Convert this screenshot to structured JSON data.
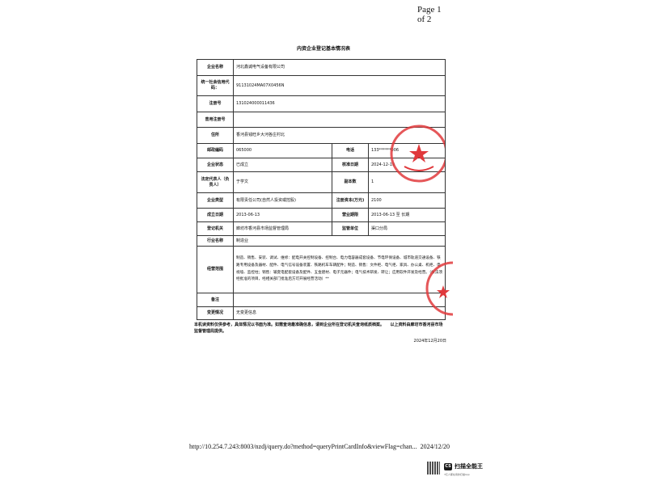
{
  "page_indicator": "Page 1 of 2",
  "title": "内资企业登记基本情况表",
  "rows": {
    "name": {
      "label": "企业名称",
      "value": "河北鑫诚电气设备有限公司"
    },
    "credit_code": {
      "label": "统一社会信用代码：",
      "value": "91131024MA07X0456N"
    },
    "reg_no": {
      "label": "注册号",
      "value": "131024000011436"
    },
    "former_reg_no": {
      "label": "曾用注册号",
      "value": ""
    },
    "address": {
      "label": "住所",
      "value": "香河县钱旺乡大河各庄村北"
    },
    "postcode": {
      "label": "邮政编码",
      "value": "065000"
    },
    "phone": {
      "label": "电话",
      "value": "133******006"
    },
    "status": {
      "label": "企业状态",
      "value": "已成立"
    },
    "approval_date": {
      "label": "核准日期",
      "value": "2024-12-19"
    },
    "legal_rep": {
      "label": "法定代表人（负责人）",
      "value": "于学文"
    },
    "copies": {
      "label": "副本数",
      "value": "1"
    },
    "type": {
      "label": "企业类型",
      "value": "有限责任公司(自然人投资或控股)"
    },
    "capital": {
      "label": "注册资本(万元)",
      "value": "2100"
    },
    "founded": {
      "label": "成立日期",
      "value": "2013-06-13"
    },
    "term": {
      "label": "营业期限",
      "value": "2013-06-13 至 长期"
    },
    "authority": {
      "label": "登记机关",
      "value": "廊坊市香河县市场监督管理局"
    },
    "supervisor": {
      "label": "监管单位",
      "value": "渠口分局"
    },
    "industry": {
      "label": "行业名称",
      "value": "制造业"
    },
    "scope": {
      "label": "经营范围",
      "value": "制造、销售、安装、调试、维修：配电开关控制设备、控制台、电力电容器成套设备、节电环保设备、城市轨道交通设备、铁路专用设备及器材、配件、电气信号设备装置、铁路机车车辆配件；制造、销售：文件柜、电气柜、家具、办公桌、机柜、电视墙、监控柱；销售：输变电配套设备及配件、五金建材、电子元器件；电气技术研发、转让；应用软件开发及经营。（依法须经批准的项目，经相关部门批准后方可开展经营活动）**"
    },
    "remarks": {
      "label": "备注",
      "value": ""
    },
    "changes": {
      "label": "变更情况",
      "value": "无变更信息"
    }
  },
  "notes": "本机读资料仅供参考，具体情况以书面为准。如需查询最准确信息，请到企业所在登记机关查询纸质档案。　　以上资料由廊坊市香河县市场监督管理局提供。",
  "print_date": "2024年12月20日",
  "footer": {
    "url": "http://10.254.7.243:8003/nzdj/query.do?method=queryPrintCardInfo&viewFlag=chan...",
    "date": "2024/12/20"
  },
  "scanner": {
    "logo": "CS",
    "name": "扫描全能王",
    "sub": "3亿人都在用的扫描App"
  },
  "stamp_color": "#e0393c"
}
